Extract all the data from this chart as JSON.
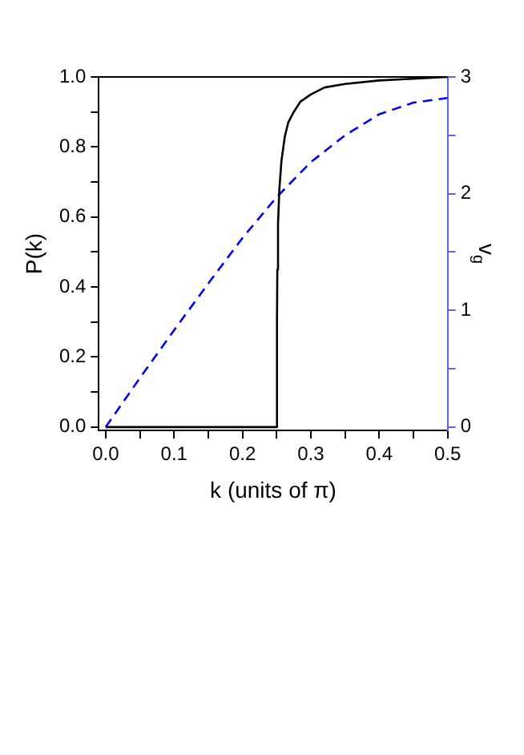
{
  "chart_data": {
    "type": "line",
    "xlabel": "k (units of π)",
    "ylabel": "P(k)",
    "y2label": "v$_{g}$",
    "xlim": [
      -0.01,
      0.5
    ],
    "xticks": [
      {
        "value": 0,
        "label": "0.0"
      },
      {
        "value": 0.05,
        "label": null
      },
      {
        "value": 0.1,
        "label": "0.1"
      },
      {
        "value": 0.15,
        "label": null
      },
      {
        "value": 0.2,
        "label": "0.2"
      },
      {
        "value": 0.25,
        "label": null
      },
      {
        "value": 0.3,
        "label": "0.3"
      },
      {
        "value": 0.35,
        "label": null
      },
      {
        "value": 0.4,
        "label": "0.4"
      },
      {
        "value": 0.45,
        "label": null
      },
      {
        "value": 0.5,
        "label": "0.5"
      }
    ],
    "ylim": [
      -0.01,
      1.0
    ],
    "yticks": [
      {
        "value": 0,
        "label": "0.0"
      },
      {
        "value": 0.1,
        "label": null
      },
      {
        "value": 0.2,
        "label": "0.2"
      },
      {
        "value": 0.3,
        "label": null
      },
      {
        "value": 0.4,
        "label": "0.4"
      },
      {
        "value": 0.5,
        "label": null
      },
      {
        "value": 0.6,
        "label": "0.6"
      },
      {
        "value": 0.7,
        "label": null
      },
      {
        "value": 0.8,
        "label": "0.8"
      },
      {
        "value": 0.9,
        "label": null
      },
      {
        "value": 1,
        "label": "1.0"
      }
    ],
    "y2lim": [
      -0.03,
      3
    ],
    "y2ticks": [
      0,
      {
        "value": 0.5,
        "label": null
      },
      1,
      {
        "value": 1.5,
        "label": null
      },
      2,
      {
        "value": 2.5,
        "label": null
      },
      3
    ],
    "grid": false,
    "legend": false,
    "marker": "none",
    "series": [
      {
        "color": "#000000",
        "line_style": "solid",
        "x": [
          0,
          0.25,
          0.2505,
          0.251,
          0.252,
          0.254,
          0.257,
          0.262,
          0.267,
          0.275,
          0.285,
          0.3,
          0.32,
          0.35,
          0.4,
          0.45,
          0.5
        ],
        "values": [
          0,
          0,
          0.3,
          0.45,
          0.58,
          0.68,
          0.76,
          0.83,
          0.87,
          0.9,
          0.93,
          0.95,
          0.97,
          0.98,
          0.99,
          0.995,
          1.0
        ]
      },
      {
        "color": "#0000ff",
        "line_style": "dashed",
        "axis": "y2",
        "x": [
          0,
          0.05,
          0.1,
          0.15,
          0.2,
          0.25,
          0.3,
          0.35,
          0.4,
          0.45,
          0.5
        ],
        "values": [
          0,
          0.42,
          0.83,
          1.23,
          1.62,
          1.97,
          2.27,
          2.5,
          2.68,
          2.78,
          2.82
        ]
      }
    ]
  }
}
